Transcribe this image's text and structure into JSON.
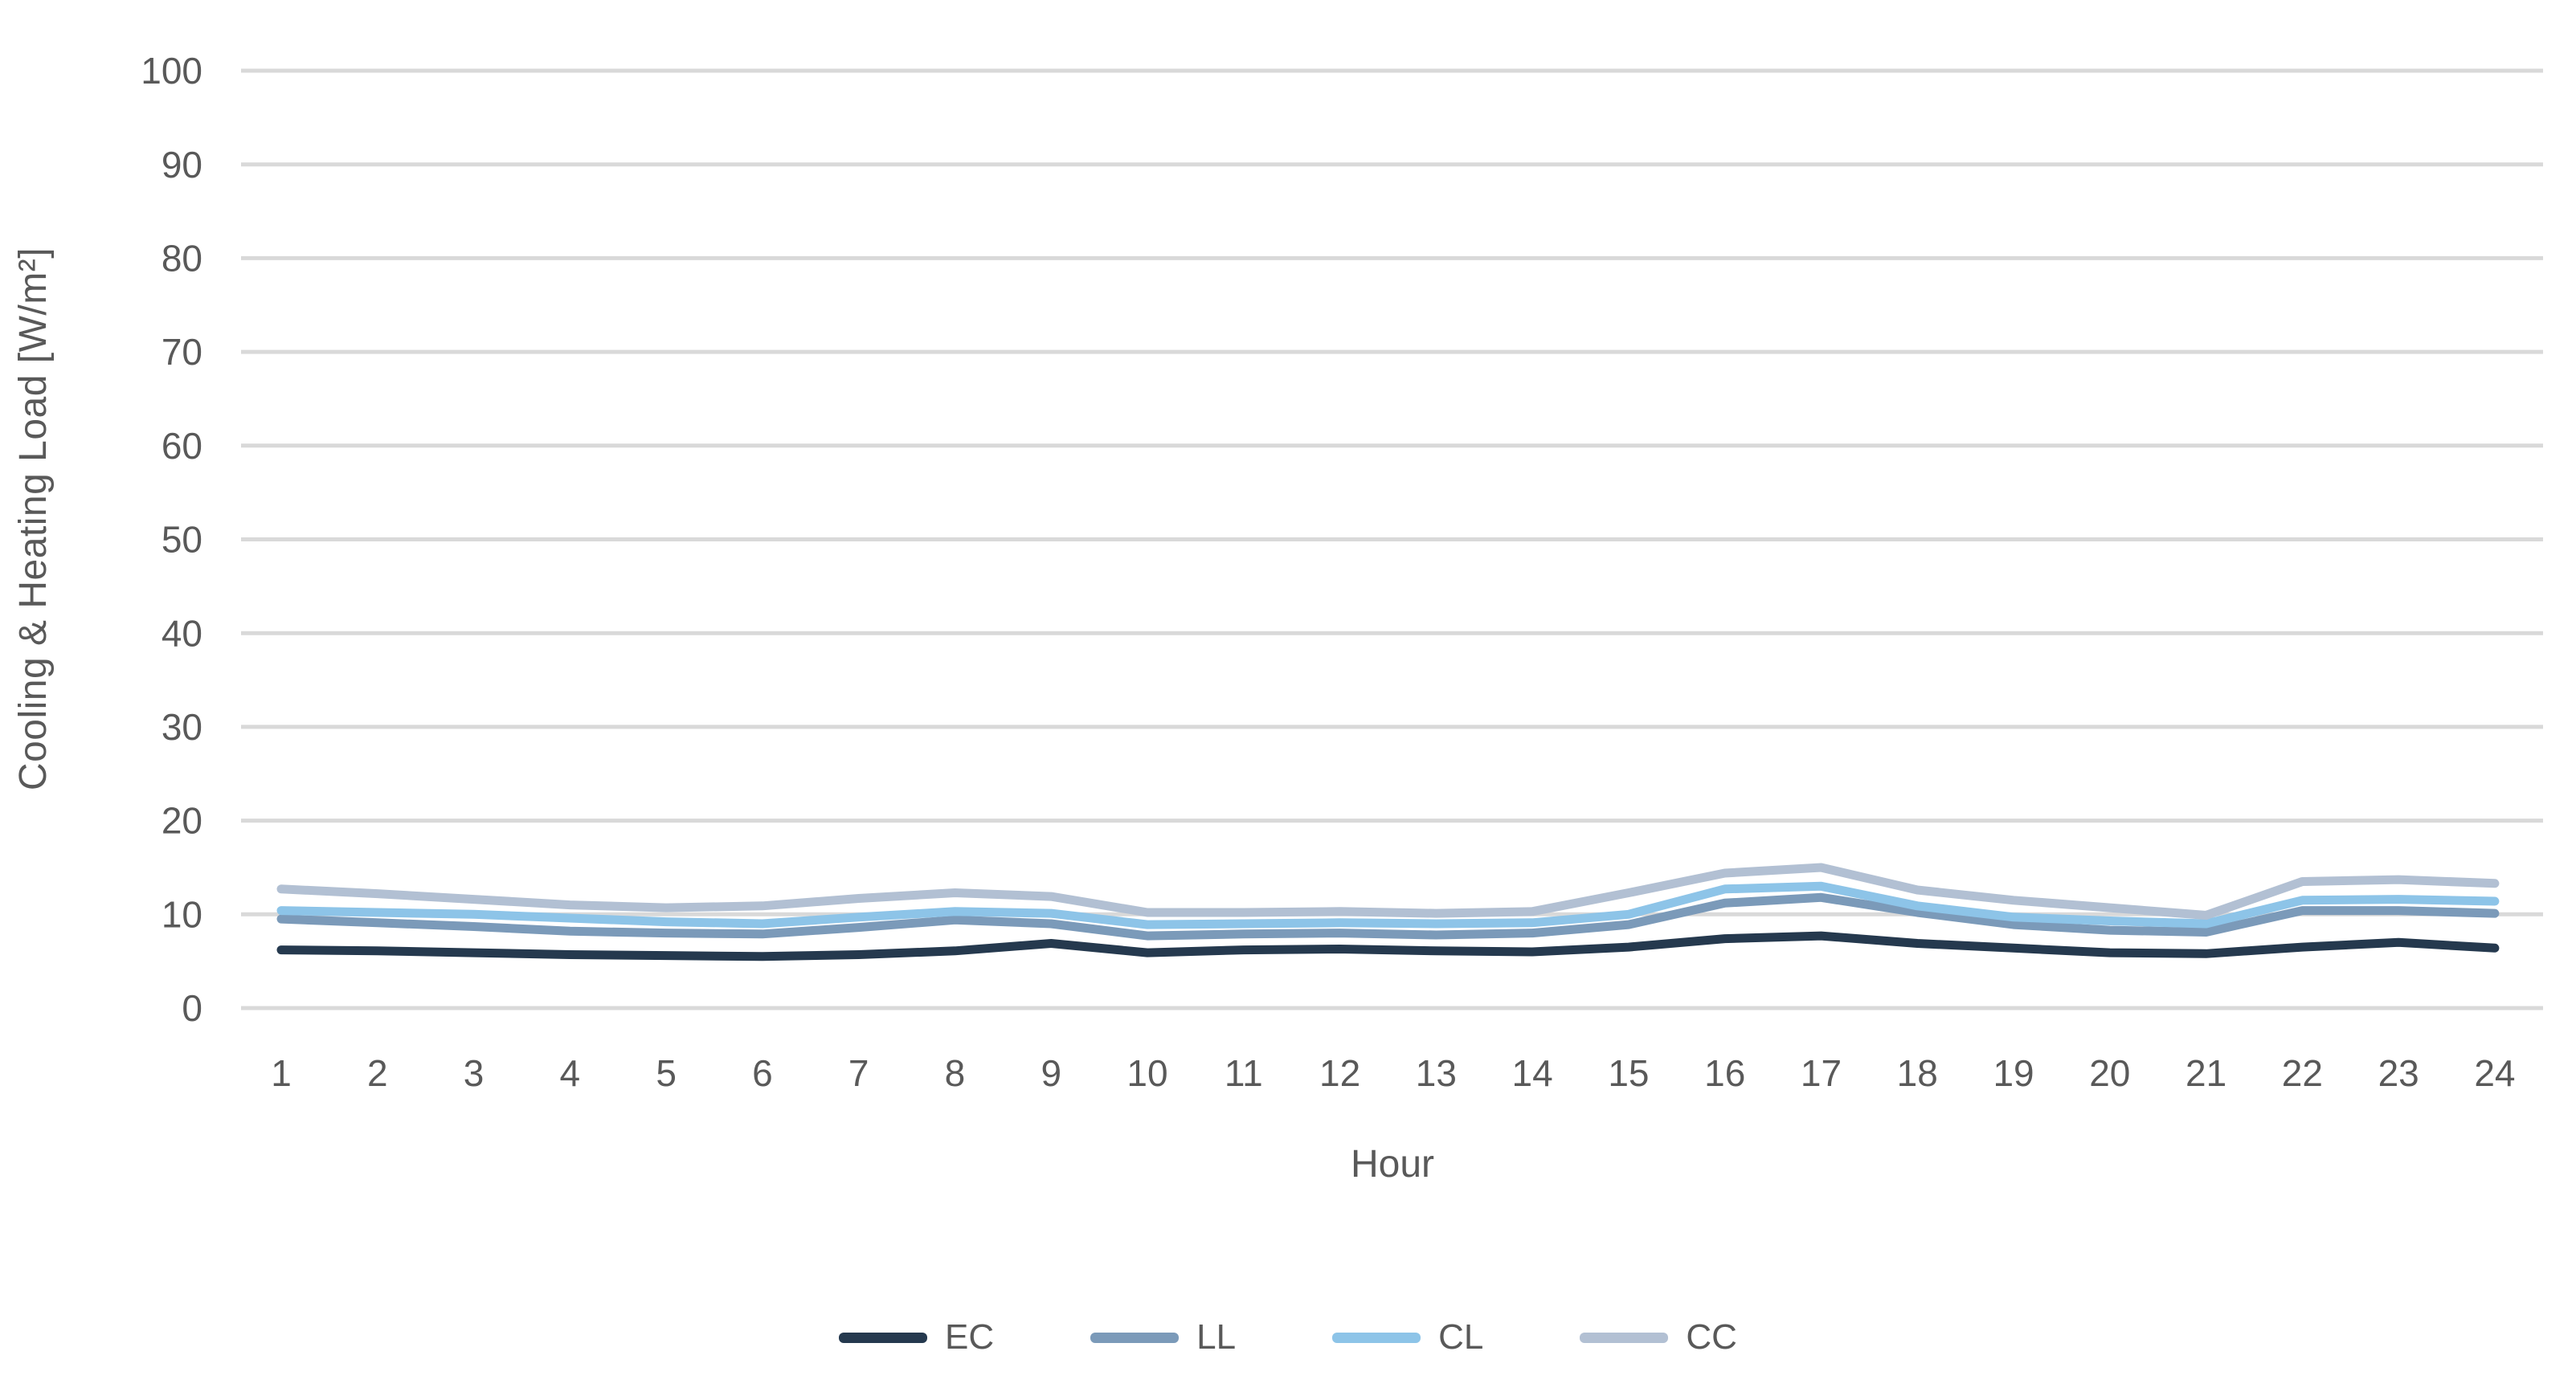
{
  "chart_data": {
    "type": "line",
    "title": "",
    "xlabel": "Hour",
    "ylabel": "Cooling & Heating Load [W/m²]",
    "x": [
      1,
      2,
      3,
      4,
      5,
      6,
      7,
      8,
      9,
      10,
      11,
      12,
      13,
      14,
      15,
      16,
      17,
      18,
      19,
      20,
      21,
      22,
      23,
      24
    ],
    "ylim": [
      0,
      100
    ],
    "yticks": [
      0,
      10,
      20,
      30,
      40,
      50,
      60,
      70,
      80,
      90,
      100
    ],
    "grid": "horizontal-only",
    "legend_position": "bottom-center",
    "gridline_color": "#d9d9d9",
    "axis_text_color": "#595959",
    "series": [
      {
        "name": "EC",
        "color": "#25394e",
        "values": [
          6.2,
          6.1,
          5.9,
          5.7,
          5.6,
          5.5,
          5.7,
          6.1,
          6.9,
          5.9,
          6.2,
          6.3,
          6.1,
          6.0,
          6.5,
          7.4,
          7.7,
          6.9,
          6.4,
          5.9,
          5.8,
          6.5,
          7.0,
          6.4
        ]
      },
      {
        "name": "LL",
        "color": "#7b9ab9",
        "values": [
          9.5,
          9.1,
          8.7,
          8.2,
          8.0,
          7.9,
          8.6,
          9.4,
          9.0,
          7.7,
          7.9,
          8.0,
          7.8,
          8.0,
          8.9,
          11.2,
          11.8,
          10.2,
          8.9,
          8.3,
          8.1,
          10.4,
          10.4,
          10.1
        ]
      },
      {
        "name": "CL",
        "color": "#8dc4e8",
        "values": [
          10.4,
          10.2,
          10.0,
          9.6,
          9.2,
          9.0,
          9.7,
          10.3,
          10.1,
          8.9,
          9.0,
          9.1,
          9.0,
          9.1,
          10.0,
          12.7,
          13.0,
          10.9,
          9.7,
          9.3,
          9.0,
          11.5,
          11.6,
          11.4
        ]
      },
      {
        "name": "CC",
        "color": "#b2c0d3",
        "values": [
          12.7,
          12.2,
          11.6,
          11.0,
          10.7,
          10.9,
          11.7,
          12.3,
          11.9,
          10.2,
          10.2,
          10.3,
          10.1,
          10.3,
          12.3,
          14.4,
          15.0,
          12.6,
          11.5,
          10.7,
          9.9,
          13.5,
          13.7,
          13.3
        ]
      }
    ]
  }
}
